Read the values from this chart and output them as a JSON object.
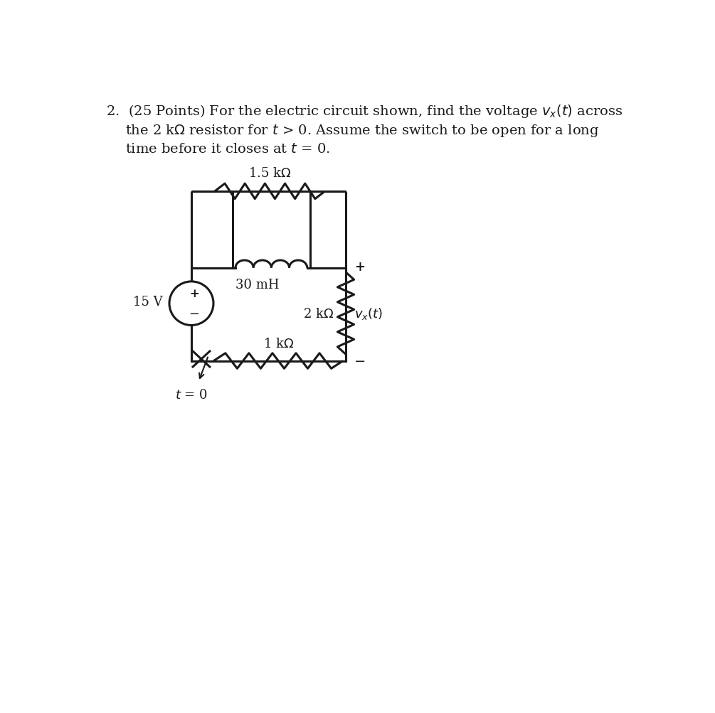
{
  "background_color": "#ffffff",
  "text_color": "#1a1a1a",
  "line_color": "#1a1a1a",
  "line_width": 2.2,
  "fontsize_main": 14,
  "fontsize_label": 13
}
